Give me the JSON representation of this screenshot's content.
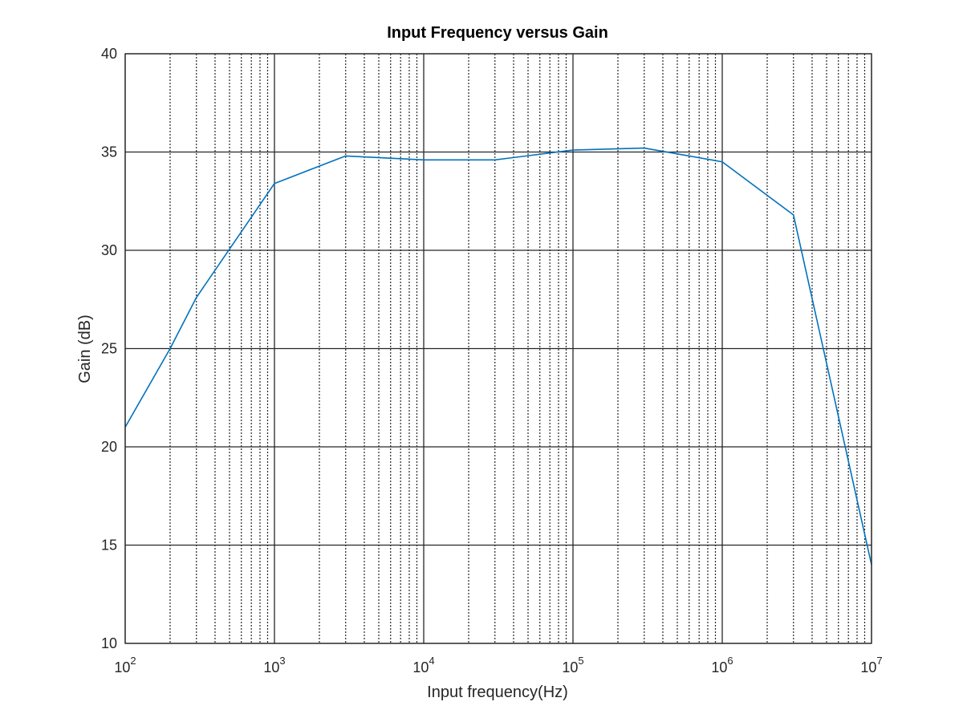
{
  "chart_data": {
    "type": "line",
    "title": "Input Frequency versus Gain",
    "xlabel": "Input frequency(Hz)",
    "ylabel": "Gain (dB)",
    "xscale": "log",
    "xlim": [
      100,
      10000000
    ],
    "ylim": [
      10,
      40
    ],
    "grid": true,
    "minor_grid": true,
    "legend": "none",
    "x_ticks": [
      {
        "base": "10",
        "exp": "2",
        "value": 100
      },
      {
        "base": "10",
        "exp": "3",
        "value": 1000
      },
      {
        "base": "10",
        "exp": "4",
        "value": 10000
      },
      {
        "base": "10",
        "exp": "5",
        "value": 100000
      },
      {
        "base": "10",
        "exp": "6",
        "value": 1000000
      },
      {
        "base": "10",
        "exp": "7",
        "value": 10000000
      }
    ],
    "y_ticks": [
      {
        "label": "10",
        "value": 10
      },
      {
        "label": "15",
        "value": 15
      },
      {
        "label": "20",
        "value": 20
      },
      {
        "label": "25",
        "value": 25
      },
      {
        "label": "30",
        "value": 30
      },
      {
        "label": "35",
        "value": 35
      },
      {
        "label": "40",
        "value": 40
      }
    ],
    "series": [
      {
        "color": "#0072bd",
        "x": [
          100,
          200,
          300,
          1000,
          3000,
          10000,
          30000,
          100000,
          300000,
          1000000,
          3000000,
          10000000
        ],
        "y": [
          21.0,
          25.0,
          27.6,
          33.4,
          34.8,
          34.6,
          34.6,
          35.1,
          35.2,
          34.5,
          31.8,
          14.0
        ]
      }
    ],
    "colors": {
      "axes": "#262626",
      "grid": "#262626",
      "line": "#0072bd"
    }
  }
}
